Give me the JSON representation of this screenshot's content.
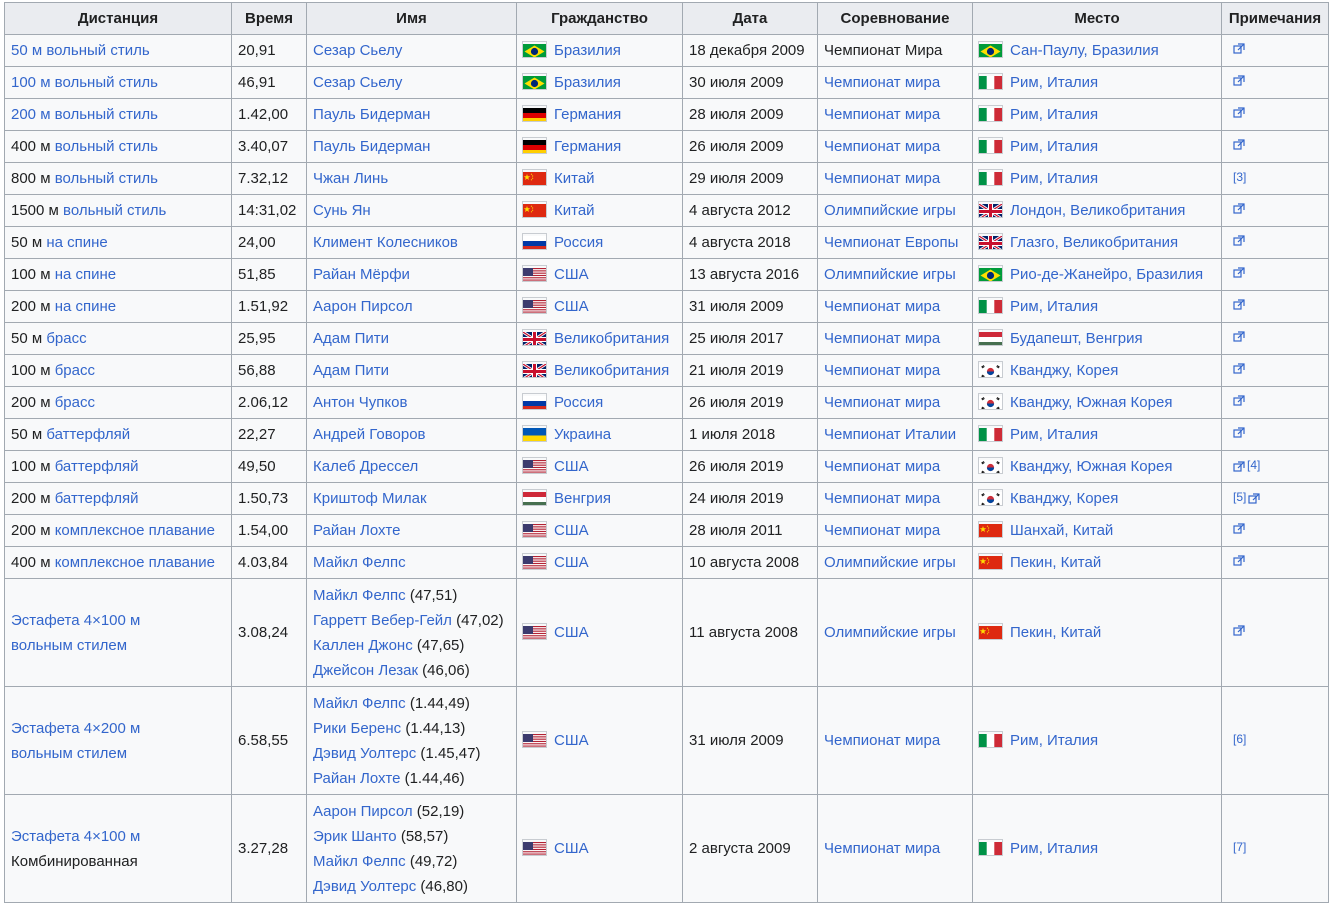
{
  "headers": [
    "Дистанция",
    "Время",
    "Имя",
    "Гражданство",
    "Дата",
    "Соревнование",
    "Место",
    "Примечания"
  ],
  "rows": [
    {
      "dist_pre": "",
      "dist_link": "50 м вольный стиль",
      "dist_mid": "",
      "dist_post": "",
      "dist_all_link": true,
      "time": "20,91",
      "names": [
        "Сезар Сьелу"
      ],
      "splits": [
        ""
      ],
      "country_flag": "brazil",
      "country": "Бразилия",
      "date": "18 декабря 2009",
      "event": "Чемпионат Мира",
      "event_link": false,
      "place_flag": "brazil",
      "place": "Сан-Паулу, Бразилия",
      "note": "ext"
    },
    {
      "dist_link": "100 м вольный стиль",
      "dist_all_link": true,
      "time": "46,91",
      "names": [
        "Сезар Сьелу"
      ],
      "splits": [
        ""
      ],
      "country_flag": "brazil",
      "country": "Бразилия",
      "date": "30 июля 2009",
      "event": "Чемпионат мира",
      "event_link": true,
      "place_flag": "italy",
      "place": "Рим, Италия",
      "note": "ext"
    },
    {
      "dist_link": "200 м вольный стиль",
      "dist_all_link": true,
      "time": "1.42,00",
      "names": [
        "Пауль Бидерман"
      ],
      "splits": [
        ""
      ],
      "country_flag": "germany",
      "country": "Германия",
      "date": "28 июля 2009",
      "event": "Чемпионат мира",
      "event_link": true,
      "place_flag": "italy",
      "place": "Рим, Италия",
      "note": "ext"
    },
    {
      "dist_pre": "400 м ",
      "dist_link": "вольный стиль",
      "dist_all_link": false,
      "time": "3.40,07",
      "names": [
        "Пауль Бидерман"
      ],
      "splits": [
        ""
      ],
      "country_flag": "germany",
      "country": "Германия",
      "date": "26 июля 2009",
      "event": "Чемпионат мира",
      "event_link": true,
      "place_flag": "italy",
      "place": "Рим, Италия",
      "note": "ext"
    },
    {
      "dist_pre": "800 м ",
      "dist_link": "вольный стиль",
      "dist_all_link": false,
      "time": "7.32,12",
      "names": [
        "Чжан Линь"
      ],
      "splits": [
        ""
      ],
      "country_flag": "china",
      "country": "Китай",
      "date": "29 июля 2009",
      "event": "Чемпионат мира",
      "event_link": true,
      "place_flag": "italy",
      "place": "Рим, Италия",
      "note": "[3]"
    },
    {
      "dist_pre": "1500 м ",
      "dist_link": "вольный стиль",
      "dist_all_link": false,
      "time": "14:31,02",
      "names": [
        "Сунь Ян"
      ],
      "splits": [
        ""
      ],
      "country_flag": "china",
      "country": "Китай",
      "date": "4 августа 2012",
      "event": "Олимпийские игры",
      "event_link": true,
      "place_flag": "uk",
      "place": "Лондон, Великобритания",
      "note": "ext"
    },
    {
      "dist_pre": "50 м ",
      "dist_link": "на спине",
      "dist_all_link": false,
      "time": "24,00",
      "names": [
        "Климент Колесников"
      ],
      "splits": [
        ""
      ],
      "country_flag": "russia",
      "country": "Россия",
      "date": "4 августа 2018",
      "event": "Чемпионат Европы",
      "event_link": true,
      "place_flag": "uk",
      "place": "Глазго, Великобритания",
      "note": "ext"
    },
    {
      "dist_pre": "100 м ",
      "dist_link": "на спине",
      "dist_all_link": false,
      "time": "51,85",
      "names": [
        "Райан Мёрфи"
      ],
      "splits": [
        ""
      ],
      "country_flag": "usa",
      "country": "США",
      "date": "13 августа 2016",
      "event": "Олимпийские игры",
      "event_link": true,
      "place_flag": "brazil",
      "place": "Рио-де-Жанейро, Бразилия",
      "note": "ext"
    },
    {
      "dist_pre": "200 м ",
      "dist_link": "на спине",
      "dist_all_link": false,
      "time": "1.51,92",
      "names": [
        "Аарон Пирсол"
      ],
      "splits": [
        ""
      ],
      "country_flag": "usa",
      "country": "США",
      "date": "31 июля 2009",
      "event": "Чемпионат мира",
      "event_link": true,
      "place_flag": "italy",
      "place": "Рим, Италия",
      "note": "ext"
    },
    {
      "dist_pre": "50 м ",
      "dist_link": "брасс",
      "dist_all_link": false,
      "time": "25,95",
      "names": [
        "Адам Пити"
      ],
      "splits": [
        ""
      ],
      "country_flag": "uk",
      "country": "Великобритания",
      "date": "25 июля 2017",
      "event": "Чемпионат мира",
      "event_link": true,
      "place_flag": "hungary",
      "place": "Будапешт, Венгрия",
      "note": "ext"
    },
    {
      "dist_pre": "100 м ",
      "dist_link": "брасс",
      "dist_all_link": false,
      "time": "56,88",
      "names": [
        "Адам Пити"
      ],
      "splits": [
        ""
      ],
      "country_flag": "uk",
      "country": "Великобритания",
      "date": "21 июля 2019",
      "event": "Чемпионат мира",
      "event_link": true,
      "place_flag": "korea",
      "place": "Кванджу, Корея",
      "note": "ext"
    },
    {
      "dist_pre": "200 м ",
      "dist_link": "брасс",
      "dist_all_link": false,
      "time": "2.06,12",
      "names": [
        "Антон Чупков"
      ],
      "splits": [
        ""
      ],
      "country_flag": "russia",
      "country": "Россия",
      "date": "26 июля 2019",
      "event": "Чемпионат мира",
      "event_link": true,
      "place_flag": "korea",
      "place": "Кванджу, Южная Корея",
      "note": "ext"
    },
    {
      "dist_pre": "50 м ",
      "dist_link": "баттерфляй",
      "dist_all_link": false,
      "time": "22,27",
      "names": [
        "Андрей Говоров"
      ],
      "splits": [
        ""
      ],
      "country_flag": "ukraine",
      "country": "Украина",
      "date": "1 июля 2018",
      "event": "Чемпионат Италии",
      "event_link": true,
      "place_flag": "italy",
      "place": "Рим, Италия",
      "note": "ext"
    },
    {
      "dist_pre": "100 м ",
      "dist_link": "баттерфляй",
      "dist_all_link": false,
      "time": "49,50",
      "names": [
        "Калеб Дрессел"
      ],
      "splits": [
        ""
      ],
      "country_flag": "usa",
      "country": "США",
      "date": "26 июля 2019",
      "event": "Чемпионат мира",
      "event_link": true,
      "place_flag": "korea",
      "place": "Кванджу, Южная Корея",
      "note": "ext+[4]"
    },
    {
      "dist_pre": "200 м ",
      "dist_link": "баттерфляй",
      "dist_all_link": false,
      "time": "1.50,73",
      "names": [
        "Криштоф Милак"
      ],
      "splits": [
        ""
      ],
      "country_flag": "hungary",
      "country": "Венгрия",
      "date": "24 июля 2019",
      "event": "Чемпионат мира",
      "event_link": true,
      "place_flag": "korea",
      "place": "Кванджу, Корея",
      "note": "[5]+ext"
    },
    {
      "dist_pre": "200 м ",
      "dist_link": "комплексное плавание",
      "dist_all_link": false,
      "time": "1.54,00",
      "names": [
        "Райан Лохте"
      ],
      "splits": [
        ""
      ],
      "country_flag": "usa",
      "country": "США",
      "date": "28 июля 2011",
      "event": "Чемпионат мира",
      "event_link": true,
      "place_flag": "china",
      "place": "Шанхай, Китай",
      "note": "ext"
    },
    {
      "dist_pre": "400 м ",
      "dist_link": "комплексное плавание",
      "dist_all_link": false,
      "time": "4.03,84",
      "names": [
        "Майкл Фелпс"
      ],
      "splits": [
        ""
      ],
      "country_flag": "usa",
      "country": "США",
      "date": "10 августа 2008",
      "event": "Олимпийские игры",
      "event_link": true,
      "place_flag": "china",
      "place": "Пекин, Китай",
      "note": "ext"
    },
    {
      "dist_relay": [
        "Эстафета 4×100 м",
        "вольным стилем"
      ],
      "dist_relay_link": [
        true,
        true
      ],
      "time": "3.08,24",
      "names": [
        "Майкл Фелпс",
        "Гарретт Вебер-Гейл",
        "Каллен Джонс",
        "Джейсон Лезак"
      ],
      "splits": [
        " (47,51)",
        " (47,02)",
        " (47,65)",
        " (46,06)"
      ],
      "country_flag": "usa",
      "country": "США",
      "date": "11 августа 2008",
      "event": "Олимпийские игры",
      "event_link": true,
      "place_flag": "china",
      "place": "Пекин, Китай",
      "note": "ext"
    },
    {
      "dist_relay": [
        "Эстафета 4×200 м",
        "вольным стилем"
      ],
      "dist_relay_link": [
        true,
        true
      ],
      "time": "6.58,55",
      "names": [
        "Майкл Фелпс",
        "Рики Беренс",
        "Дэвид Уолтерс",
        "Райан Лохте"
      ],
      "splits": [
        " (1.44,49)",
        " (1.44,13)",
        " (1.45,47)",
        " (1.44,46)"
      ],
      "country_flag": "usa",
      "country": "США",
      "date": "31 июля 2009",
      "event": "Чемпионат мира",
      "event_link": true,
      "place_flag": "italy",
      "place": "Рим, Италия",
      "note": "[6]"
    },
    {
      "dist_relay": [
        "Эстафета 4×100 м",
        "Комбинированная"
      ],
      "dist_relay_link": [
        true,
        false
      ],
      "time": "3.27,28",
      "names": [
        "Аарон Пирсол",
        "Эрик Шанто",
        "Майкл Фелпс",
        "Дэвид Уолтерс"
      ],
      "splits": [
        " (52,19)",
        " (58,57)",
        " (49,72)",
        " (46,80)"
      ],
      "country_flag": "usa",
      "country": "США",
      "date": "2 августа 2009",
      "event": "Чемпионат мира",
      "event_link": true,
      "place_flag": "italy",
      "place": "Рим, Италия",
      "note": "[7]"
    }
  ],
  "colors": {
    "link": "#3366cc",
    "text": "#202122",
    "header_bg": "#eaecf0",
    "cell_bg": "#f8f9fa",
    "border": "#a2a9b1"
  }
}
